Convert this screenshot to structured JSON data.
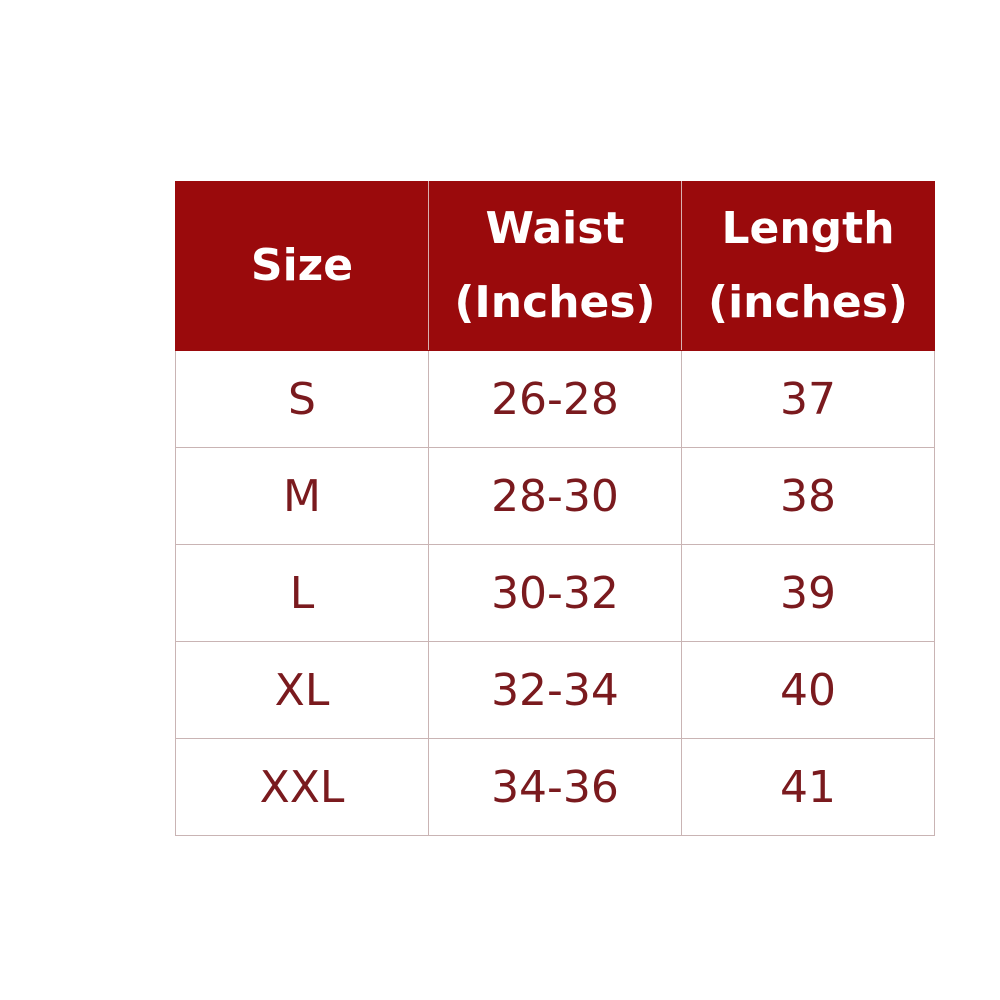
{
  "table": {
    "header": [
      [
        "Size"
      ],
      [
        "Waist",
        "(Inches)"
      ],
      [
        "Length",
        "(inches)"
      ]
    ],
    "rows": [
      [
        "S",
        "26-28",
        "37"
      ],
      [
        "M",
        "28-30",
        "38"
      ],
      [
        "L",
        "30-32",
        "39"
      ],
      [
        "XL",
        "32-34",
        "40"
      ],
      [
        "XXL",
        "34-36",
        "41"
      ]
    ]
  }
}
